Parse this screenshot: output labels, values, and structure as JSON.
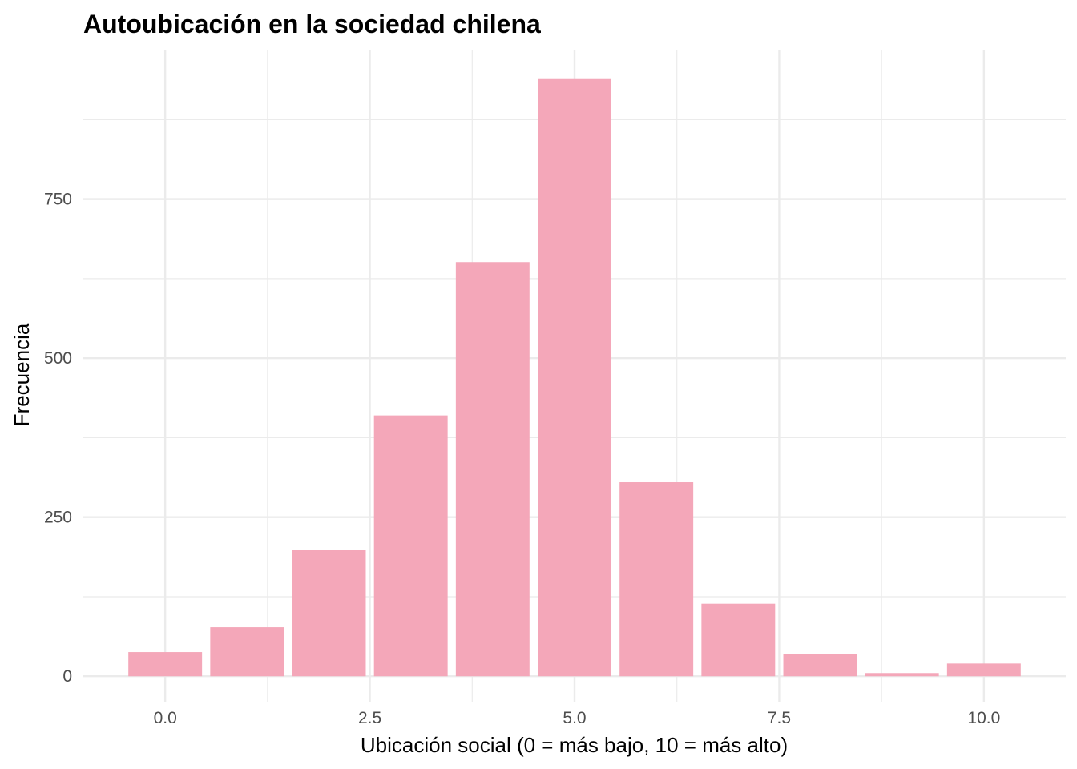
{
  "chart_data": {
    "type": "bar",
    "title": "Autoubicación en la sociedad chilena",
    "xlabel": "Ubicación social (0 = más bajo, 10 = más alto)",
    "ylabel": "Frecuencia",
    "x": [
      0,
      1,
      2,
      3,
      4,
      5,
      6,
      7,
      8,
      9,
      10
    ],
    "values": [
      38,
      77,
      198,
      410,
      651,
      940,
      305,
      114,
      35,
      5,
      20
    ],
    "xlim": [
      -1,
      11
    ],
    "ylim": [
      -40,
      985
    ],
    "x_ticks": [
      0.0,
      2.5,
      5.0,
      7.5,
      10.0
    ],
    "x_tick_labels": [
      "0.0",
      "2.5",
      "5.0",
      "7.5",
      "10.0"
    ],
    "y_ticks": [
      0,
      250,
      500,
      750
    ],
    "y_tick_labels": [
      "0",
      "250",
      "500",
      "750"
    ],
    "grid": true,
    "bar_color": "#f4a7b9",
    "legend": "none"
  }
}
